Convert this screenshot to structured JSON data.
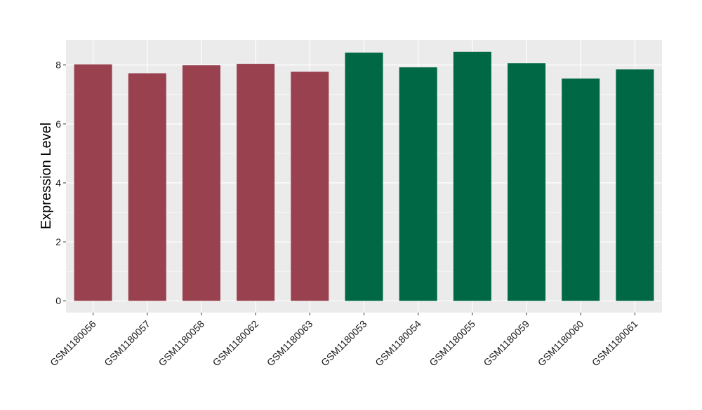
{
  "chart_data": {
    "type": "bar",
    "title": "",
    "xlabel": "",
    "ylabel": "Expression Level",
    "ylim": [
      -0.4,
      8.85
    ],
    "yticks": [
      0,
      2,
      4,
      6,
      8
    ],
    "grid": true,
    "categories": [
      "GSM1180056",
      "GSM1180057",
      "GSM1180058",
      "GSM1180062",
      "GSM1180063",
      "GSM1180053",
      "GSM1180054",
      "GSM1180055",
      "GSM1180059",
      "GSM1180060",
      "GSM1180061"
    ],
    "values": [
      8.02,
      7.72,
      7.99,
      8.04,
      7.77,
      8.42,
      7.92,
      8.45,
      8.06,
      7.54,
      7.85
    ],
    "bar_colors": [
      "#99414f",
      "#99414f",
      "#99414f",
      "#99414f",
      "#99414f",
      "#006845",
      "#006845",
      "#006845",
      "#006845",
      "#006845",
      "#006845"
    ],
    "panel_background": "#ebebeb",
    "grid_color": "#ffffff"
  }
}
